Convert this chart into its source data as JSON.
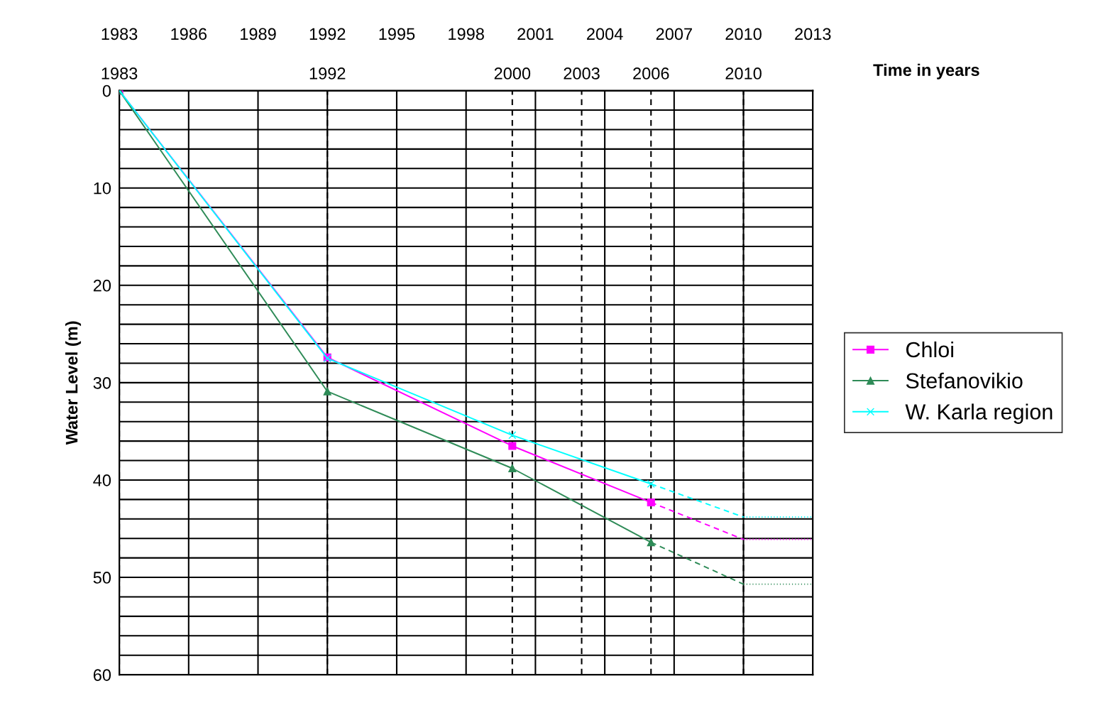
{
  "chart_data": {
    "type": "line",
    "xlabel": "Time in years",
    "ylabel": "Water Level (m)",
    "xlim": [
      1983,
      2013
    ],
    "ylim": [
      60,
      0
    ],
    "xticks": [
      1983,
      1986,
      1989,
      1992,
      1995,
      1998,
      2001,
      2004,
      2007,
      2010,
      2013
    ],
    "x2lim": [
      1983,
      2013
    ],
    "x2ticks": [
      1983,
      1992,
      2000,
      2003,
      2006,
      2010
    ],
    "yticks": [
      0,
      {
        "value": 2,
        "label": null
      },
      {
        "value": 4,
        "label": null
      },
      {
        "value": 6,
        "label": null
      },
      {
        "value": 8,
        "label": null
      },
      10,
      {
        "value": 12,
        "label": null
      },
      {
        "value": 14,
        "label": null
      },
      {
        "value": 16,
        "label": null
      },
      {
        "value": 18,
        "label": null
      },
      20,
      {
        "value": 22,
        "label": null
      },
      {
        "value": 24,
        "label": null
      },
      {
        "value": 26,
        "label": null
      },
      {
        "value": 28,
        "label": null
      },
      30,
      {
        "value": 32,
        "label": null
      },
      {
        "value": 34,
        "label": null
      },
      {
        "value": 36,
        "label": null
      },
      {
        "value": 38,
        "label": null
      },
      40,
      {
        "value": 42,
        "label": null
      },
      {
        "value": 44,
        "label": null
      },
      {
        "value": 46,
        "label": null
      },
      {
        "value": 48,
        "label": null
      },
      50,
      {
        "value": 52,
        "label": null
      },
      {
        "value": 54,
        "label": null
      },
      {
        "value": 56,
        "label": null
      },
      {
        "value": 58,
        "label": null
      },
      60
    ],
    "grid": true,
    "legend": "right",
    "series": [
      {
        "name": "Chloi",
        "color": "#ff00ff",
        "marker": "square",
        "line_style": "solid",
        "x": [
          1983,
          1992,
          2000,
          2006
        ],
        "values": [
          0,
          27.4,
          36.5,
          42.3
        ]
      },
      {
        "name": "Stefanovikio",
        "color": "#2e8b57",
        "marker": "triangle",
        "line_style": "solid",
        "x": [
          1983,
          1992,
          2000,
          2006
        ],
        "values": [
          0,
          30.9,
          38.8,
          46.4
        ]
      },
      {
        "name": "W. Karla region",
        "color": "#00ffff",
        "marker": "cross",
        "line_style": "solid",
        "x": [
          1983,
          1992,
          2000,
          2006
        ],
        "values": [
          0,
          27.5,
          35.4,
          40.4
        ]
      },
      {
        "color": "#ff00ff",
        "marker": "none",
        "line_style": "dashed",
        "x": [
          2006,
          2010
        ],
        "values": [
          42.3,
          46.1
        ]
      },
      {
        "color": "#2e8b57",
        "marker": "none",
        "line_style": "dashed",
        "x": [
          2006,
          2010
        ],
        "values": [
          46.4,
          50.7
        ]
      },
      {
        "color": "#00ffff",
        "marker": "none",
        "line_style": "dashed",
        "x": [
          2006,
          2010
        ],
        "values": [
          40.4,
          43.8
        ]
      },
      {
        "color": "#ff00ff",
        "marker": "none",
        "line_style": "dotted",
        "x": [
          2010,
          2013
        ],
        "values": [
          46.1,
          46.1
        ]
      },
      {
        "color": "#2e8b57",
        "marker": "none",
        "line_style": "dotted",
        "x": [
          2010,
          2013
        ],
        "values": [
          50.7,
          50.7
        ]
      },
      {
        "color": "#00ffff",
        "marker": "none",
        "line_style": "dotted",
        "x": [
          2010,
          2013
        ],
        "values": [
          43.8,
          43.8
        ]
      }
    ]
  }
}
